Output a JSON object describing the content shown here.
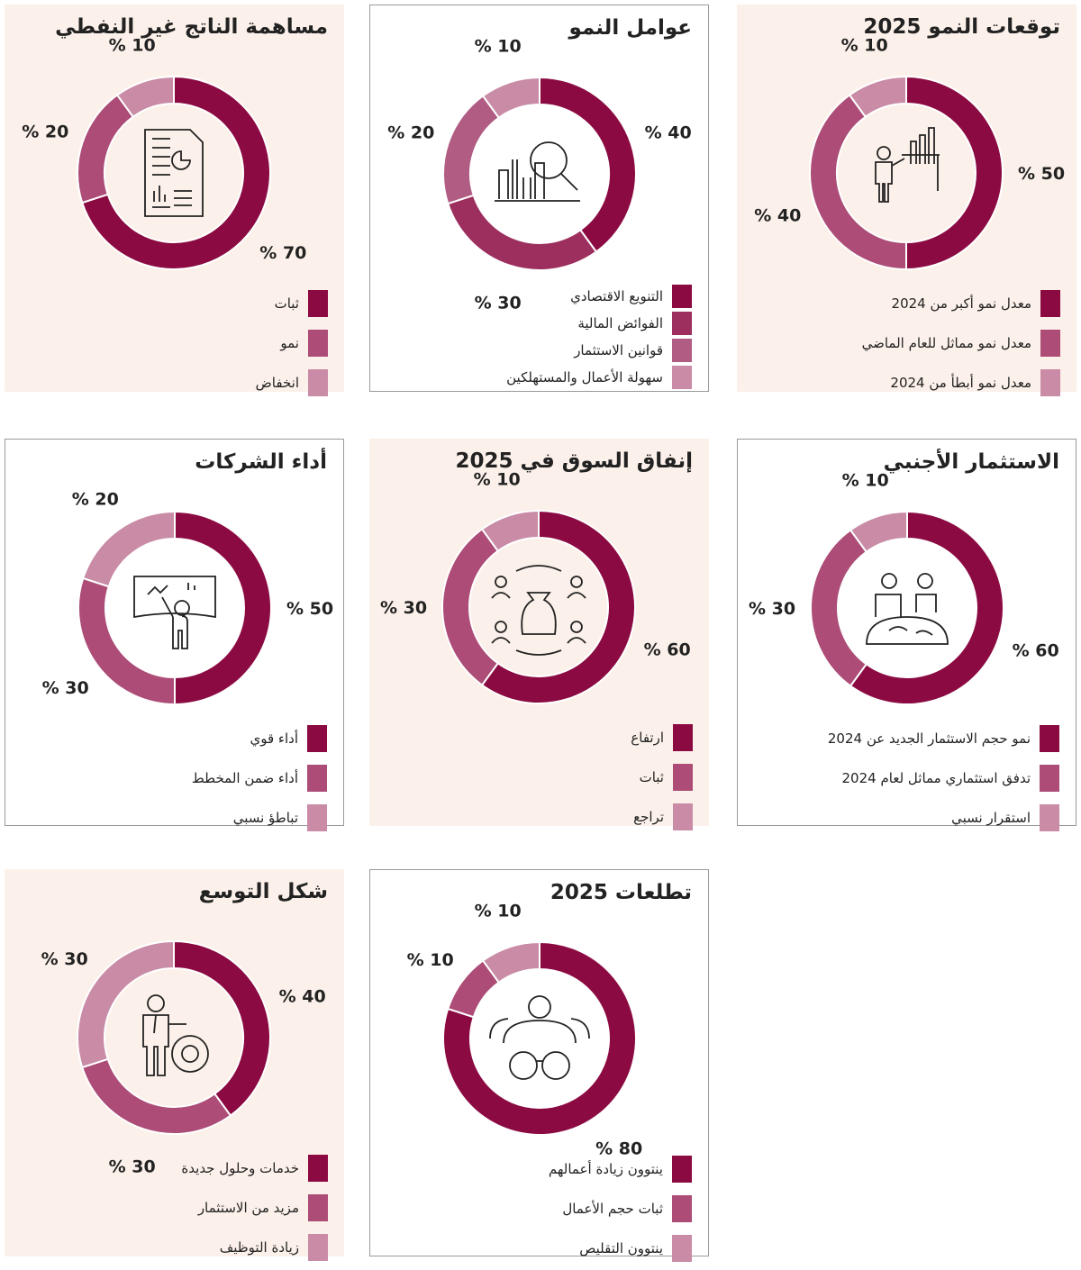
{
  "chart_data": [
    {
      "type": "pie",
      "style": "donut",
      "title": "توقعات النمو 2025",
      "icon": "presenter-bar-chart-icon",
      "categories": [
        "معدل نمو أكبر من 2024",
        "معدل نمو مماثل للعام الماضي",
        "معدل نمو أبطأ من 2024"
      ],
      "values": [
        50,
        40,
        10
      ],
      "colors": [
        "#8b0a42",
        "#ac4c77",
        "#c98ba6"
      ]
    },
    {
      "type": "pie",
      "style": "donut",
      "title": "عوامل النمو",
      "icon": "chart-magnifier-icon",
      "categories": [
        "التنويع الاقتصادي",
        "الفوائض المالية",
        "قوانين الاستثمار",
        "سهولة الأعمال والمستهلكين"
      ],
      "values": [
        40,
        30,
        20,
        10
      ],
      "colors": [
        "#8b0a42",
        "#9c2f5e",
        "#b05c83",
        "#c98ba6"
      ]
    },
    {
      "type": "pie",
      "style": "donut",
      "title": "مساهمة الناتج غير النفطي",
      "icon": "report-document-icon",
      "categories": [
        "ثبات",
        "نمو",
        "انخفاض"
      ],
      "values": [
        70,
        20,
        10
      ],
      "colors": [
        "#8b0a42",
        "#ac4c77",
        "#c98ba6"
      ]
    },
    {
      "type": "pie",
      "style": "donut",
      "title": "الاستثمار الأجنبي",
      "icon": "people-globe-icon",
      "categories": [
        "نمو حجم الاستثمار الجديد عن 2024",
        "تدفق استثماري مماثل لعام 2024",
        "استقرار نسبي"
      ],
      "values": [
        60,
        30,
        10
      ],
      "colors": [
        "#8b0a42",
        "#ac4c77",
        "#c98ba6"
      ]
    },
    {
      "type": "pie",
      "style": "donut",
      "title": "إنفاق السوق في 2025",
      "icon": "money-bag-people-icon",
      "categories": [
        "ارتفاع",
        "ثبات",
        "تراجع"
      ],
      "values": [
        60,
        30,
        10
      ],
      "colors": [
        "#8b0a42",
        "#ac4c77",
        "#c98ba6"
      ]
    },
    {
      "type": "pie",
      "style": "donut",
      "title": "أداء الشركات",
      "icon": "presenter-screen-icon",
      "categories": [
        "أداء قوي",
        "أداء ضمن المخطط",
        "تباطؤ نسبي"
      ],
      "values": [
        50,
        30,
        20
      ],
      "colors": [
        "#8b0a42",
        "#ac4c77",
        "#c98ba6"
      ]
    },
    {
      "type": "pie",
      "style": "donut",
      "title": "شكل التوسع",
      "icon": "businessman-gear-icon",
      "categories": [
        "خدمات وحلول جديدة",
        "مزيد من الاستثمار",
        "زيادة التوظيف"
      ],
      "values": [
        40,
        30,
        30
      ],
      "colors": [
        "#8b0a42",
        "#ac4c77",
        "#c98ba6"
      ]
    },
    {
      "type": "pie",
      "style": "donut",
      "title": "تطلعات 2025",
      "icon": "person-binoculars-icon",
      "categories": [
        "ينتوون زيادة أعمالهم",
        "ثبات حجم الأعمال",
        "ينتوون التقليص"
      ],
      "values": [
        80,
        10,
        10
      ],
      "colors": [
        "#8b0a42",
        "#ac4c77",
        "#c98ba6"
      ]
    }
  ],
  "value_suffix": "%"
}
